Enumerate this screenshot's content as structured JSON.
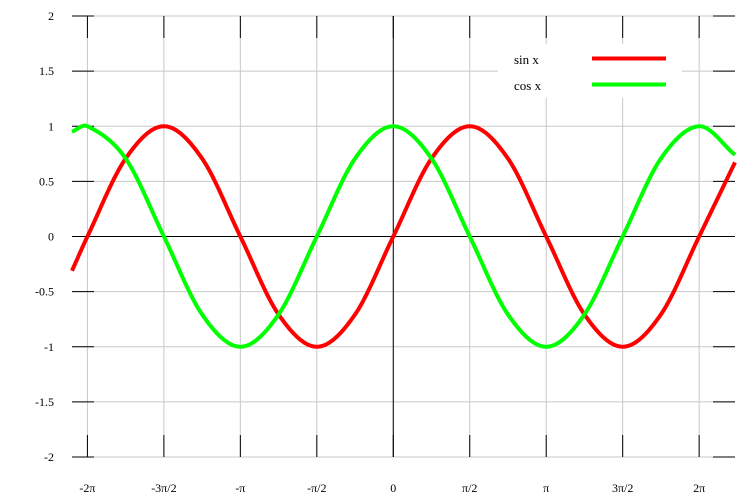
{
  "chart_data": {
    "type": "line",
    "title": "",
    "xlabel": "",
    "ylabel": "",
    "xlim": [
      -6.6,
      7.02
    ],
    "ylim": [
      -2,
      2
    ],
    "grid": true,
    "legend_position": "top-right",
    "x_ticks": [
      {
        "value": -6.2832,
        "label": "-2π"
      },
      {
        "value": -4.7124,
        "label": "-3π/2"
      },
      {
        "value": -3.1416,
        "label": "-π"
      },
      {
        "value": -1.5708,
        "label": "-π/2"
      },
      {
        "value": 0,
        "label": "0"
      },
      {
        "value": 1.5708,
        "label": "π/2"
      },
      {
        "value": 3.1416,
        "label": "π"
      },
      {
        "value": 4.7124,
        "label": "3π/2"
      },
      {
        "value": 6.2832,
        "label": "2π"
      }
    ],
    "y_ticks": [
      {
        "value": 2,
        "label": "2"
      },
      {
        "value": 1.5,
        "label": "1.5"
      },
      {
        "value": 1,
        "label": "1"
      },
      {
        "value": 0.5,
        "label": "0.5"
      },
      {
        "value": 0,
        "label": "0"
      },
      {
        "value": -0.5,
        "label": "-0.5"
      },
      {
        "value": -1,
        "label": "-1"
      },
      {
        "value": -1.5,
        "label": "-1.5"
      },
      {
        "value": -2,
        "label": "-2"
      }
    ],
    "series": [
      {
        "name": "sin x",
        "color": "#ff0000",
        "x": [
          -6.6,
          -6.2832,
          -5.4978,
          -4.7124,
          -3.927,
          -3.1416,
          -2.3562,
          -1.5708,
          -0.7854,
          0,
          0.7854,
          1.5708,
          2.3562,
          3.1416,
          3.927,
          4.7124,
          5.4978,
          6.2832,
          7.02
        ],
        "y": [
          -0.311,
          0,
          0.7071,
          1,
          0.7071,
          0,
          -0.7071,
          -1,
          -0.7071,
          0,
          0.7071,
          1,
          0.7071,
          0,
          -0.7071,
          -1,
          -0.7071,
          0,
          0.6724
        ]
      },
      {
        "name": "cos x",
        "color": "#00ff00",
        "x": [
          -6.6,
          -6.2832,
          -5.4978,
          -4.7124,
          -3.927,
          -3.1416,
          -2.3562,
          -1.5708,
          -0.7854,
          0,
          0.7854,
          1.5708,
          2.3562,
          3.1416,
          3.927,
          4.7124,
          5.4978,
          6.2832,
          7.02
        ],
        "y": [
          0.9502,
          1,
          0.7071,
          0,
          -0.7071,
          -1,
          -0.7071,
          0,
          0.7071,
          1,
          0.7071,
          0,
          -0.7071,
          -1,
          -0.7071,
          0,
          0.7071,
          1,
          0.7402
        ]
      }
    ]
  }
}
